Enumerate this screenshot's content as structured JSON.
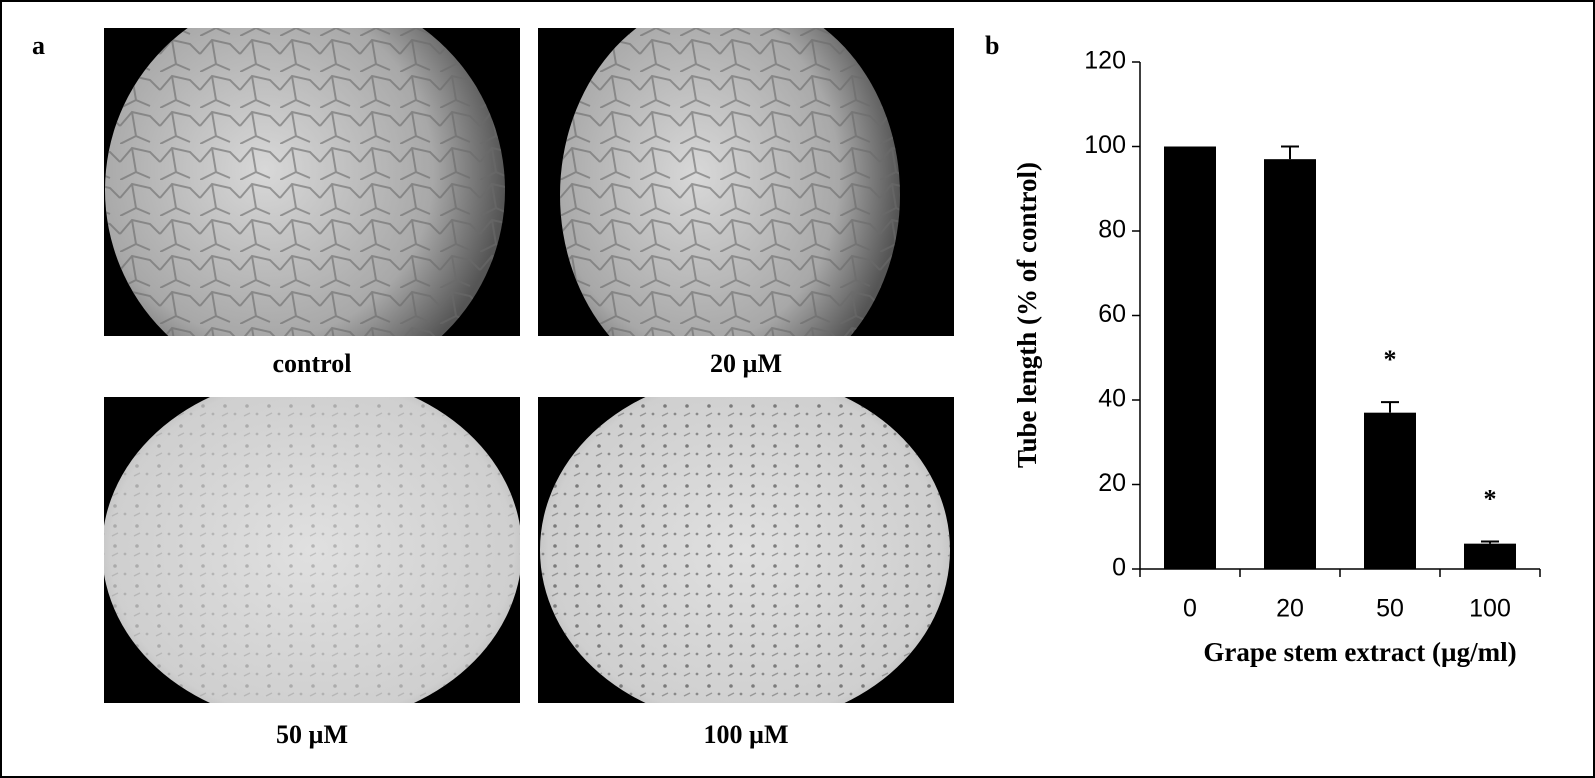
{
  "panel_a": {
    "label": "a",
    "images": [
      {
        "caption": "control"
      },
      {
        "caption": "20 µM"
      },
      {
        "caption": "50 µM"
      },
      {
        "caption": "100 µM"
      }
    ]
  },
  "chart_data": {
    "type": "bar",
    "panel_label": "b",
    "categories": [
      "0",
      "20",
      "50",
      "100"
    ],
    "values": [
      100,
      97,
      37,
      6
    ],
    "errors": [
      0,
      3,
      2.5,
      0.5
    ],
    "annotations": [
      null,
      null,
      "*",
      "*"
    ],
    "color": "#000000",
    "ylim": [
      0,
      120
    ],
    "yticks": [
      0,
      20,
      40,
      60,
      80,
      100,
      120
    ],
    "xlabel": "Grape stem extract (µg/ml)",
    "ylabel": "Tube length (% of control)",
    "grid": false
  }
}
